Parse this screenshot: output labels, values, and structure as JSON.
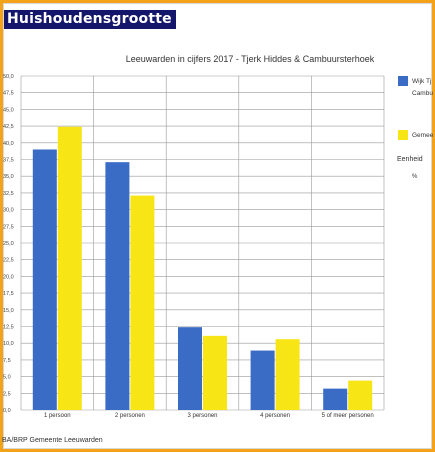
{
  "page": {
    "heading": "Huishoudensgrootte",
    "source": "BA/BRP Gemeente Leeuwarden",
    "unit_label": "Eenheid",
    "unit_value": "%"
  },
  "chart_data": {
    "type": "bar",
    "title": "Leeuwarden in cijfers 2017 - Tjerk Hiddes & Cambuursterhoek",
    "xlabel": "",
    "ylabel": "",
    "ylim": [
      0,
      50
    ],
    "ytick_step": 2.5,
    "categories": [
      "1 persoon",
      "2 personen",
      "3 personen",
      "4 personen",
      "5 of meer personen"
    ],
    "series": [
      {
        "name": "Wijk Tjerk Hiddes & Cambuursterhoek",
        "legend_lines": [
          "Wijk Tj",
          "Cambu"
        ],
        "color": "#3a6cc6",
        "values": [
          39.0,
          37.1,
          12.4,
          8.9,
          3.2
        ]
      },
      {
        "name": "Gemeente Leeuwarden",
        "legend_lines": [
          "Gemee"
        ],
        "color": "#f7e515",
        "values": [
          42.4,
          32.1,
          11.1,
          10.6,
          4.4
        ]
      }
    ],
    "grid": true,
    "legend_position": "right"
  }
}
